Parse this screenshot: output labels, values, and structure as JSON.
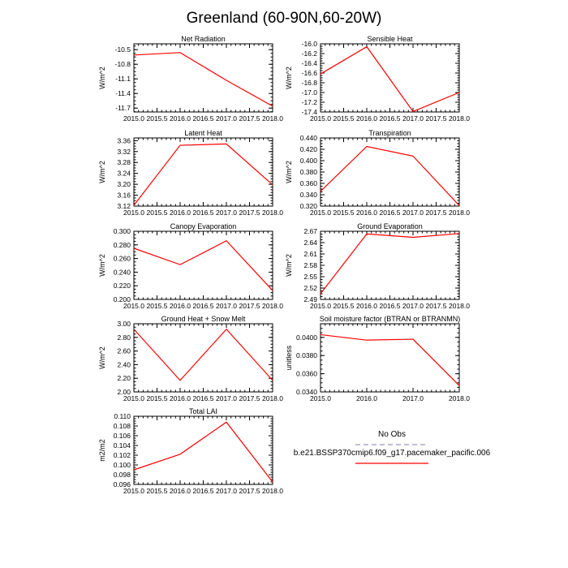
{
  "figure": {
    "title": "Greenland (60-90N,60-20W)",
    "series_color": "#ff0000",
    "obs_color": "#aaaacc"
  },
  "legend": {
    "obs_label": "No Obs",
    "model_label": "b.e21.BSSP370cmip6.f09_g17.pacemaker_pacific.006"
  },
  "chart_data": [
    {
      "type": "line",
      "title": "Net Radiation",
      "ylabel": "W/m^2",
      "x": [
        2015,
        2016,
        2017,
        2018
      ],
      "xlim": [
        2015,
        2018
      ],
      "xticks": [
        "2015.0",
        "2015.5",
        "2016.0",
        "2016.5",
        "2017.0",
        "2017.5",
        "2018.0"
      ],
      "xtick_values": [
        2015.0,
        2015.5,
        2016.0,
        2016.5,
        2017.0,
        2017.5,
        2018.0
      ],
      "ylim": [
        -11.78,
        -10.38
      ],
      "yticks": [
        "-10.5",
        "-10.8",
        "-11.1",
        "-11.4",
        "-11.7"
      ],
      "ytick_values": [
        -10.5,
        -10.8,
        -11.1,
        -11.4,
        -11.7
      ],
      "series": [
        {
          "values": [
            -10.61,
            -10.56,
            -11.13,
            -11.66
          ]
        }
      ]
    },
    {
      "type": "line",
      "title": "Sensible Heat",
      "ylabel": "W/m^2",
      "x": [
        2015,
        2016,
        2017,
        2018
      ],
      "xlim": [
        2015,
        2018
      ],
      "xticks": [
        "2015.0",
        "2015.5",
        "2016.0",
        "2016.5",
        "2017.0",
        "2017.5",
        "2018.0"
      ],
      "xtick_values": [
        2015.0,
        2015.5,
        2016.0,
        2016.5,
        2017.0,
        2017.5,
        2018.0
      ],
      "ylim": [
        -17.4,
        -16.0
      ],
      "yticks": [
        "-16.0",
        "-16.2",
        "-16.4",
        "-16.6",
        "-16.8",
        "-17.0",
        "-17.2",
        "-17.4"
      ],
      "ytick_values": [
        -16.0,
        -16.2,
        -16.4,
        -16.6,
        -16.8,
        -17.0,
        -17.2,
        -17.4
      ],
      "series": [
        {
          "values": [
            -16.62,
            -16.06,
            -17.39,
            -17.0
          ]
        }
      ]
    },
    {
      "type": "line",
      "title": "Latent Heat",
      "ylabel": "W/m^2",
      "x": [
        2015,
        2016,
        2017,
        2018
      ],
      "xlim": [
        2015,
        2018
      ],
      "xticks": [
        "2015.0",
        "2015.5",
        "2016.0",
        "2016.5",
        "2017.0",
        "2017.5",
        "2018.0"
      ],
      "xtick_values": [
        2015.0,
        2015.5,
        2016.0,
        2016.5,
        2017.0,
        2017.5,
        2018.0
      ],
      "ylim": [
        3.12,
        3.37
      ],
      "yticks": [
        "3.36",
        "3.32",
        "3.28",
        "3.24",
        "3.20",
        "3.16",
        "3.12"
      ],
      "ytick_values": [
        3.36,
        3.32,
        3.28,
        3.24,
        3.2,
        3.16,
        3.12
      ],
      "series": [
        {
          "values": [
            3.123,
            3.343,
            3.348,
            3.198
          ]
        }
      ]
    },
    {
      "type": "line",
      "title": "Transpiration",
      "ylabel": "W/m^2",
      "x": [
        2015,
        2016,
        2017,
        2018
      ],
      "xlim": [
        2015,
        2018
      ],
      "xticks": [
        "2015.0",
        "2015.5",
        "2016.0",
        "2016.5",
        "2017.0",
        "2017.5",
        "2018.0"
      ],
      "xtick_values": [
        2015.0,
        2015.5,
        2016.0,
        2016.5,
        2017.0,
        2017.5,
        2018.0
      ],
      "ylim": [
        0.32,
        0.44
      ],
      "yticks": [
        "0.440",
        "0.420",
        "0.400",
        "0.380",
        "0.360",
        "0.340",
        "0.320"
      ],
      "ytick_values": [
        0.44,
        0.42,
        0.4,
        0.38,
        0.36,
        0.34,
        0.32
      ],
      "series": [
        {
          "values": [
            0.346,
            0.425,
            0.408,
            0.321
          ]
        }
      ]
    },
    {
      "type": "line",
      "title": "Canopy Evaporation",
      "ylabel": "W/m^2",
      "x": [
        2015,
        2016,
        2017,
        2018
      ],
      "xlim": [
        2015,
        2018
      ],
      "xticks": [
        "2015.0",
        "2015.5",
        "2016.0",
        "2016.5",
        "2017.0",
        "2017.5",
        "2018.0"
      ],
      "xtick_values": [
        2015.0,
        2015.5,
        2016.0,
        2016.5,
        2017.0,
        2017.5,
        2018.0
      ],
      "ylim": [
        0.2,
        0.3
      ],
      "yticks": [
        "0.300",
        "0.280",
        "0.260",
        "0.240",
        "0.220",
        "0.200"
      ],
      "ytick_values": [
        0.3,
        0.28,
        0.26,
        0.24,
        0.22,
        0.2
      ],
      "series": [
        {
          "values": [
            0.275,
            0.251,
            0.286,
            0.213
          ]
        }
      ]
    },
    {
      "type": "line",
      "title": "Ground Evaporation",
      "ylabel": "W/m^2",
      "x": [
        2015,
        2016,
        2017,
        2018
      ],
      "xlim": [
        2015,
        2018
      ],
      "xticks": [
        "2015.0",
        "2015.5",
        "2016.0",
        "2016.5",
        "2017.0",
        "2017.5",
        "2018.0"
      ],
      "xtick_values": [
        2015.0,
        2015.5,
        2016.0,
        2016.5,
        2017.0,
        2017.5,
        2018.0
      ],
      "ylim": [
        2.49,
        2.67
      ],
      "yticks": [
        "2.67",
        "2.64",
        "2.61",
        "2.58",
        "2.55",
        "2.52",
        "2.49"
      ],
      "ytick_values": [
        2.67,
        2.64,
        2.61,
        2.58,
        2.55,
        2.52,
        2.49
      ],
      "series": [
        {
          "values": [
            2.505,
            2.663,
            2.654,
            2.664
          ]
        }
      ]
    },
    {
      "type": "line",
      "title": "Ground Heat + Snow Melt",
      "ylabel": "W/m^2",
      "x": [
        2015,
        2016,
        2017,
        2018
      ],
      "xlim": [
        2015,
        2018
      ],
      "xticks": [
        "2015.0",
        "2015.5",
        "2016.0",
        "2016.5",
        "2017.0",
        "2017.5",
        "2018.0"
      ],
      "xtick_values": [
        2015.0,
        2015.5,
        2016.0,
        2016.5,
        2017.0,
        2017.5,
        2018.0
      ],
      "ylim": [
        2.0,
        3.0
      ],
      "yticks": [
        "3.00",
        "2.80",
        "2.60",
        "2.40",
        "2.20",
        "2.00"
      ],
      "ytick_values": [
        3.0,
        2.8,
        2.6,
        2.4,
        2.2,
        2.0
      ],
      "series": [
        {
          "values": [
            2.92,
            2.17,
            2.92,
            2.17
          ]
        }
      ]
    },
    {
      "type": "line",
      "title": "Soil moisture factor (BTRAN or BTRANMN)",
      "ylabel": "unitless",
      "x": [
        2015,
        2016,
        2017,
        2018
      ],
      "xlim": [
        2015,
        2018
      ],
      "xticks": [
        "2015.0",
        "2016.0",
        "2017.0",
        "2018.0"
      ],
      "xtick_values": [
        2015.0,
        2016.0,
        2017.0,
        2018.0
      ],
      "ylim": [
        0.034,
        0.0415
      ],
      "yticks": [
        "0.0400",
        "0.0380",
        "0.0360",
        "0.0340"
      ],
      "ytick_values": [
        0.04,
        0.038,
        0.036,
        0.034
      ],
      "series": [
        {
          "values": [
            0.0403,
            0.0397,
            0.0398,
            0.0347
          ]
        }
      ]
    },
    {
      "type": "line",
      "title": "Total LAI",
      "ylabel": "m2/m2",
      "x": [
        2015,
        2016,
        2017,
        2018
      ],
      "xlim": [
        2015,
        2018
      ],
      "xticks": [
        "2015.0",
        "2015.5",
        "2016.0",
        "2016.5",
        "2017.0",
        "2017.5",
        "2018.0"
      ],
      "xtick_values": [
        2015.0,
        2015.5,
        2016.0,
        2016.5,
        2017.0,
        2017.5,
        2018.0
      ],
      "ylim": [
        0.096,
        0.11
      ],
      "yticks": [
        "0.110",
        "0.108",
        "0.106",
        "0.104",
        "0.102",
        "0.100",
        "0.098",
        "0.096"
      ],
      "ytick_values": [
        0.11,
        0.108,
        0.106,
        0.104,
        0.102,
        0.1,
        0.098,
        0.096
      ],
      "series": [
        {
          "values": [
            0.099,
            0.1022,
            0.1088,
            0.0965
          ]
        }
      ]
    }
  ]
}
